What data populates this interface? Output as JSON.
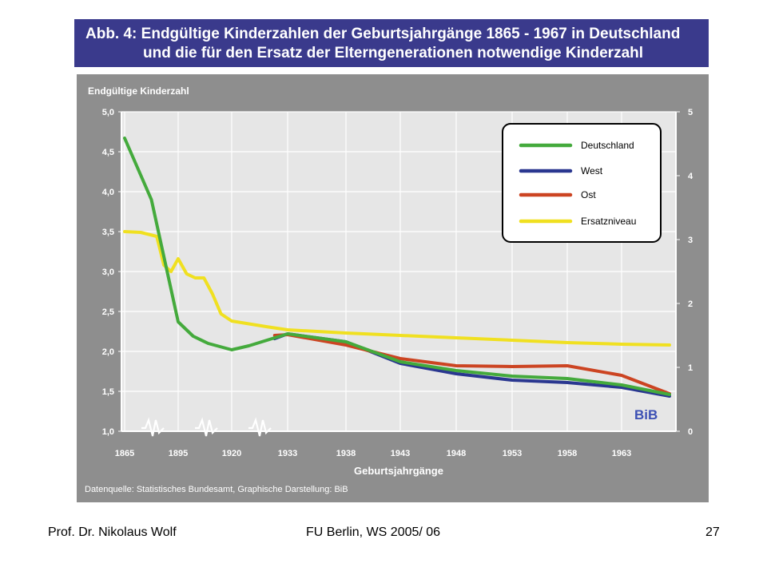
{
  "slide": {
    "title_line1": "Abb. 4: Endgültige Kinderzahlen der Geburtsjahrgänge 1865 - 1967 in Deutschland",
    "title_line2": "und die für den Ersatz der Elterngenerationen notwendige Kinderzahl",
    "footer_left": "Prof. Dr. Nikolaus Wolf",
    "footer_center": "FU Berlin, WS 2005/ 06",
    "footer_right": "27"
  },
  "chart_data": {
    "type": "line",
    "ylabel": "Endgültige Kinderzahl",
    "xlabel": "Geburtsjahrgänge",
    "source": "Datenquelle: Statistisches Bundesamt, Graphische Darstellung: BiB",
    "logo": "BiB",
    "ylim": [
      1.0,
      5.0
    ],
    "yticks": [
      "1,0",
      "1,5",
      "2,0",
      "2,5",
      "3,0",
      "3,5",
      "4,0",
      "4,5",
      "5,0"
    ],
    "yticks_right": [
      "0",
      "1",
      "2",
      "3",
      "4",
      "5"
    ],
    "xticks": [
      "1865",
      "1895",
      "1920",
      "1933",
      "1938",
      "1943",
      "1948",
      "1953",
      "1958",
      "1963"
    ],
    "grid": true,
    "legend_position": "top-right",
    "series": [
      {
        "name": "Deutschland",
        "color": "#44aa3c",
        "points": [
          [
            1865,
            4.67
          ],
          [
            1880,
            3.9
          ],
          [
            1895,
            2.37
          ],
          [
            1902,
            2.19
          ],
          [
            1909,
            2.1
          ],
          [
            1920,
            2.02
          ],
          [
            1924,
            2.07
          ],
          [
            1933,
            2.22
          ],
          [
            1938,
            2.12
          ],
          [
            1943,
            1.87
          ],
          [
            1948,
            1.76
          ],
          [
            1953,
            1.69
          ],
          [
            1958,
            1.66
          ],
          [
            1963,
            1.58
          ],
          [
            1968,
            1.46
          ]
        ]
      },
      {
        "name": "West",
        "color": "#2a3790",
        "points": [
          [
            1930,
            2.16
          ],
          [
            1933,
            2.22
          ],
          [
            1938,
            2.12
          ],
          [
            1943,
            1.85
          ],
          [
            1948,
            1.72
          ],
          [
            1953,
            1.64
          ],
          [
            1958,
            1.61
          ],
          [
            1963,
            1.55
          ],
          [
            1968,
            1.44
          ]
        ]
      },
      {
        "name": "Ost",
        "color": "#cc4422",
        "points": [
          [
            1930,
            2.2
          ],
          [
            1933,
            2.21
          ],
          [
            1938,
            2.08
          ],
          [
            1943,
            1.91
          ],
          [
            1948,
            1.82
          ],
          [
            1953,
            1.81
          ],
          [
            1958,
            1.82
          ],
          [
            1963,
            1.7
          ],
          [
            1968,
            1.47
          ]
        ]
      },
      {
        "name": "Ersatzniveau",
        "color": "#f0e020",
        "points": [
          [
            1865,
            3.5
          ],
          [
            1874,
            3.49
          ],
          [
            1883,
            3.44
          ],
          [
            1887,
            3.08
          ],
          [
            1891,
            3.0
          ],
          [
            1895,
            3.16
          ],
          [
            1899,
            2.97
          ],
          [
            1903,
            2.92
          ],
          [
            1907,
            2.92
          ],
          [
            1911,
            2.72
          ],
          [
            1915,
            2.47
          ],
          [
            1920,
            2.38
          ],
          [
            1928,
            2.31
          ],
          [
            1933,
            2.27
          ],
          [
            1938,
            2.23
          ],
          [
            1943,
            2.2
          ],
          [
            1948,
            2.17
          ],
          [
            1953,
            2.14
          ],
          [
            1958,
            2.11
          ],
          [
            1963,
            2.09
          ],
          [
            1968,
            2.08
          ]
        ]
      }
    ]
  }
}
